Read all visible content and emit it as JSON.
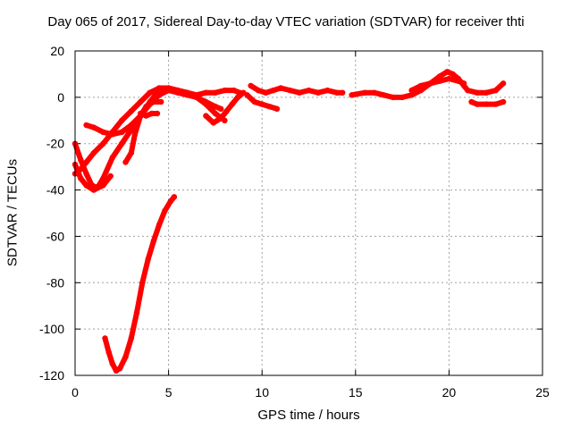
{
  "chart_data": {
    "type": "scatter",
    "title": "Day 065 of 2017, Sidereal Day-to-day VTEC variation (SDTVAR) for receiver thti",
    "xlabel": "GPS time / hours",
    "ylabel": "SDTVAR / TECUs",
    "xlim": [
      0,
      25
    ],
    "ylim": [
      -120,
      20
    ],
    "xticks": [
      "0",
      "5",
      "10",
      "15",
      "20",
      "25"
    ],
    "yticks": [
      "20",
      "0",
      "-20",
      "-40",
      "-60",
      "-80",
      "-100",
      "-120"
    ],
    "grid": true,
    "legend": "none",
    "marker_color": "#ff0000",
    "series": [
      {
        "x": [
          0.0,
          0.3,
          0.6,
          0.9,
          1.2,
          1.5,
          2.0,
          2.5,
          3.0,
          3.5,
          4.0,
          4.5,
          5.0,
          5.5,
          6.0,
          6.5,
          7.0,
          7.5,
          8.0,
          8.5,
          8.8
        ],
        "y": [
          -20,
          -27,
          -33,
          -38,
          -39,
          -35,
          -26,
          -20,
          -14,
          -8,
          -2,
          3,
          4,
          3,
          2,
          1,
          2,
          2,
          3,
          3,
          2
        ]
      },
      {
        "x": [
          0.0,
          0.3,
          0.6,
          1.0,
          1.5,
          2.0,
          2.5,
          3.0,
          3.5,
          4.0,
          4.5,
          5.0,
          5.5,
          6.0,
          6.5,
          7.0,
          7.5,
          8.0
        ],
        "y": [
          -33,
          -31,
          -28,
          -24,
          -20,
          -15,
          -10,
          -6,
          -2,
          2,
          4,
          4,
          3,
          2,
          0,
          -3,
          -7,
          -10
        ]
      },
      {
        "x": [
          0.0,
          0.3,
          0.6,
          1.0,
          1.5,
          1.9
        ],
        "y": [
          -29,
          -35,
          -38,
          -40,
          -38,
          -34
        ]
      },
      {
        "x": [
          0.6,
          1.0,
          1.5,
          2.0,
          2.5,
          3.0,
          3.5,
          4.0,
          4.5,
          5.0,
          5.5,
          6.0,
          6.5,
          7.0,
          7.5,
          7.8
        ],
        "y": [
          -12,
          -13,
          -15,
          -16,
          -15,
          -12,
          -8,
          -3,
          1,
          3,
          2,
          1,
          0,
          -2,
          -4,
          -5
        ]
      },
      {
        "x": [
          1.6,
          1.8,
          2.0,
          2.2,
          2.4,
          2.7,
          3.0,
          3.3,
          3.6,
          3.9,
          4.2,
          4.5,
          4.8,
          5.1,
          5.3
        ],
        "y": [
          -104,
          -110,
          -115,
          -118,
          -117,
          -112,
          -104,
          -93,
          -80,
          -70,
          -62,
          -55,
          -49,
          -45,
          -43
        ]
      },
      {
        "x": [
          2.7,
          3.0,
          3.2,
          3.5,
          3.8,
          4.2,
          4.6
        ],
        "y": [
          -28,
          -24,
          -16,
          -8,
          -4,
          -2,
          -2
        ]
      },
      {
        "x": [
          3.5,
          3.8,
          4.1,
          4.4
        ],
        "y": [
          -7,
          -8,
          -7,
          -7
        ]
      },
      {
        "x": [
          7.0,
          7.4,
          7.8,
          8.1,
          8.4,
          8.7,
          9.0
        ],
        "y": [
          -8,
          -11,
          -9,
          -6,
          -3,
          0,
          2
        ]
      },
      {
        "x": [
          9.4,
          9.8,
          10.2,
          10.6,
          11.0,
          11.5,
          12.0,
          12.5,
          13.0,
          13.5,
          14.0,
          14.3
        ],
        "y": [
          5,
          3,
          2,
          3,
          4,
          3,
          2,
          3,
          2,
          3,
          2,
          2
        ]
      },
      {
        "x": [
          9.2,
          9.6,
          10.0,
          10.4,
          10.8
        ],
        "y": [
          1,
          -2,
          -3,
          -4,
          -5
        ]
      },
      {
        "x": [
          14.8,
          15.5,
          16.0,
          16.5,
          17.0,
          17.5,
          18.0,
          18.5,
          19.0,
          19.5,
          19.9,
          20.2,
          20.5,
          20.8,
          21.0,
          21.5,
          22.0,
          22.5,
          22.9
        ],
        "y": [
          1,
          2,
          2,
          1,
          0,
          0,
          1,
          3,
          6,
          9,
          11,
          10,
          8,
          5,
          3,
          2,
          2,
          3,
          6
        ]
      },
      {
        "x": [
          18.0,
          18.5,
          19.0,
          19.5,
          20.0,
          20.5,
          20.8
        ],
        "y": [
          3,
          5,
          6,
          7,
          8,
          7,
          6
        ]
      },
      {
        "x": [
          21.2,
          21.5,
          22.0,
          22.5,
          22.9
        ],
        "y": [
          -2,
          -3,
          -3,
          -3,
          -2
        ]
      }
    ]
  }
}
